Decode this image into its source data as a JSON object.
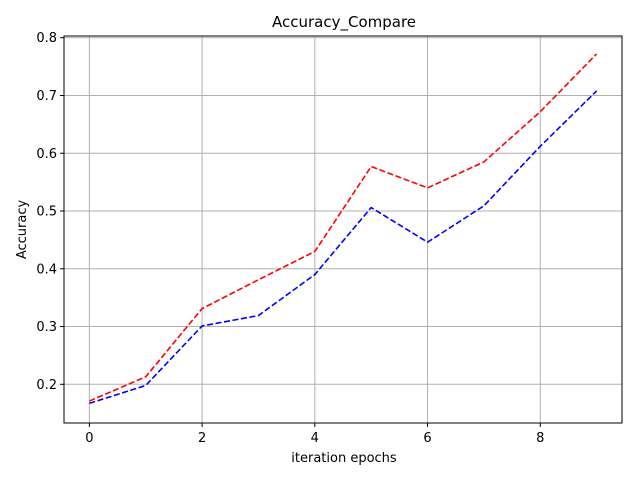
{
  "chart_data": {
    "type": "line",
    "title": "Accuracy_Compare",
    "xlabel": "iteration epochs",
    "ylabel": "Accuracy",
    "x": [
      0,
      1,
      2,
      3,
      4,
      5,
      6,
      7,
      8,
      9
    ],
    "xlim": [
      -0.45,
      9.45
    ],
    "ylim": [
      0.133,
      0.803
    ],
    "xticks": [
      0,
      2,
      4,
      6,
      8
    ],
    "yticks": [
      0.2,
      0.3,
      0.4,
      0.5,
      0.6,
      0.7,
      0.8
    ],
    "grid": true,
    "series": [
      {
        "color": "#ff0000",
        "linestyle": "dashed",
        "values": [
          0.171,
          0.213,
          0.331,
          0.381,
          0.43,
          0.577,
          0.54,
          0.585,
          0.672,
          0.772
        ]
      },
      {
        "color": "#0000ff",
        "linestyle": "dashed",
        "values": [
          0.167,
          0.198,
          0.301,
          0.319,
          0.39,
          0.506,
          0.446,
          0.509,
          0.612,
          0.708
        ]
      }
    ]
  }
}
